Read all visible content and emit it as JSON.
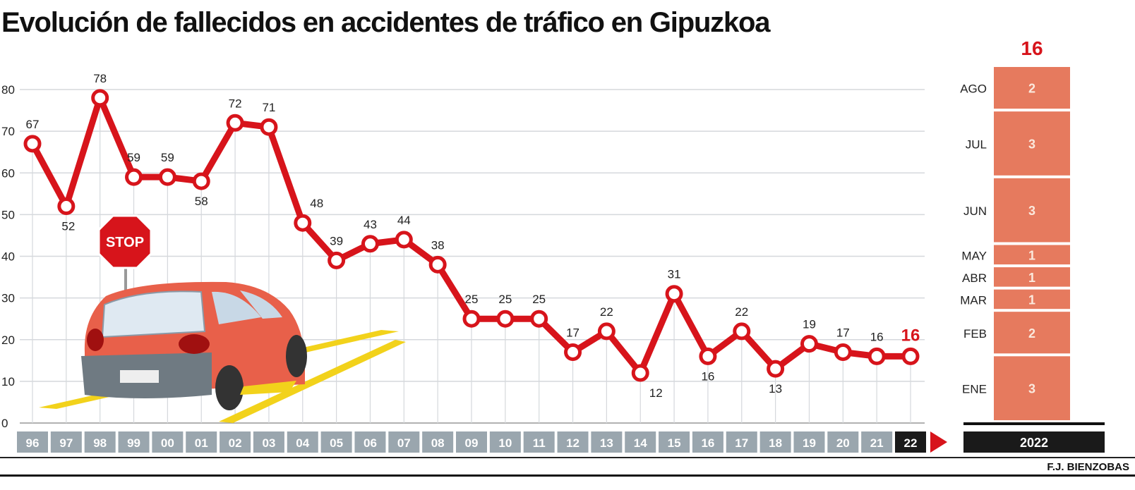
{
  "chart_data": {
    "type": "line",
    "title": "Evolución de fallecidos en accidentes de tráfico en Gipuzkoa",
    "xlabel": "",
    "ylabel": "",
    "ylim": [
      0,
      80
    ],
    "yticks": [
      0,
      10,
      20,
      30,
      40,
      50,
      60,
      70,
      80
    ],
    "grid": true,
    "categories": [
      "96",
      "97",
      "98",
      "99",
      "00",
      "01",
      "02",
      "03",
      "04",
      "05",
      "06",
      "07",
      "08",
      "09",
      "10",
      "11",
      "12",
      "13",
      "14",
      "15",
      "16",
      "17",
      "18",
      "19",
      "20",
      "21",
      "22"
    ],
    "series": [
      {
        "name": "Fallecidos",
        "color": "#d7141b",
        "values": [
          67,
          52,
          78,
          59,
          59,
          58,
          72,
          71,
          48,
          39,
          43,
          44,
          38,
          25,
          25,
          25,
          17,
          22,
          12,
          31,
          16,
          22,
          13,
          19,
          17,
          16,
          16
        ]
      }
    ],
    "highlight_last": true,
    "breakdown": {
      "type": "stacked-bar",
      "year_label": "2022",
      "total": 16,
      "color": "#e67a5e",
      "segments": [
        {
          "month": "ENE",
          "value": 3
        },
        {
          "month": "FEB",
          "value": 2
        },
        {
          "month": "MAR",
          "value": 1
        },
        {
          "month": "ABR",
          "value": 1
        },
        {
          "month": "MAY",
          "value": 1
        },
        {
          "month": "JUN",
          "value": 3
        },
        {
          "month": "JUL",
          "value": 3
        },
        {
          "month": "AGO",
          "value": 2
        }
      ]
    }
  },
  "illustration": {
    "stop_sign_text": "STOP"
  },
  "credit": "F.J. BIENZOBAS"
}
